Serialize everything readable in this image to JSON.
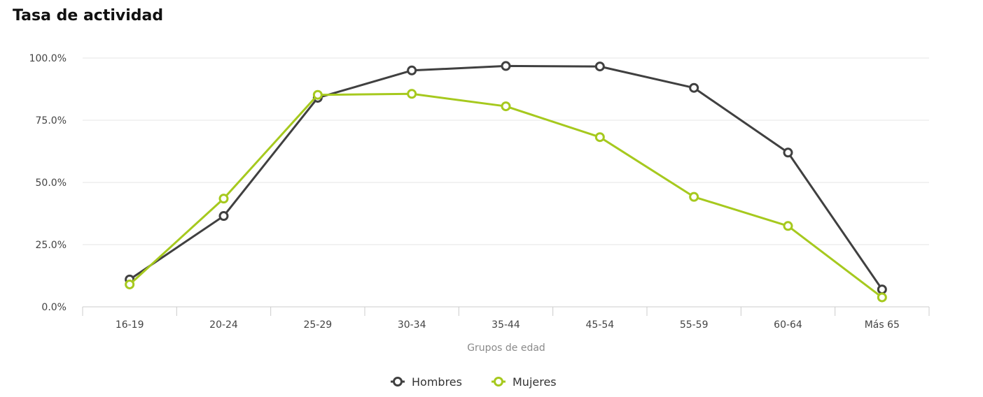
{
  "chart_data": {
    "type": "line",
    "title": "Tasa de actividad",
    "xlabel": "Grupos de edad",
    "ylabel": "",
    "categories": [
      "16-19",
      "20-24",
      "25-29",
      "30-34",
      "35-44",
      "45-54",
      "55-59",
      "60-64",
      "Más 65"
    ],
    "yticks": [
      "0.0%",
      "25.0%",
      "50.0%",
      "75.0%",
      "100.0%"
    ],
    "ylim": [
      0,
      100
    ],
    "grid": true,
    "legend_position": "bottom-center",
    "series": [
      {
        "name": "Hombres",
        "color": "#404040",
        "values": [
          11.0,
          36.5,
          84.0,
          95.0,
          96.8,
          96.6,
          88.0,
          62.0,
          7.0
        ]
      },
      {
        "name": "Mujeres",
        "color": "#a6c91e",
        "values": [
          9.0,
          43.5,
          85.2,
          85.6,
          80.6,
          68.2,
          44.2,
          32.5,
          3.8
        ]
      }
    ]
  }
}
